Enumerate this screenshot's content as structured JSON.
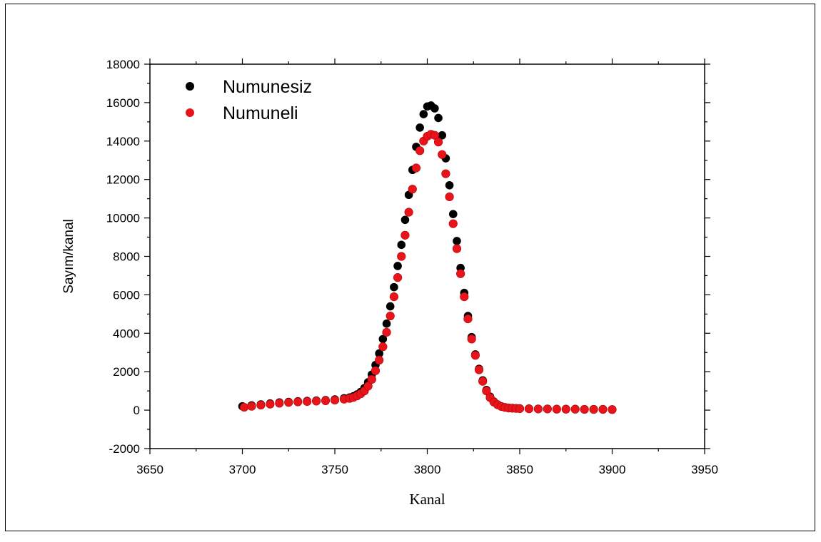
{
  "chart_data": {
    "type": "scatter",
    "xlabel": "Kanal",
    "ylabel": "Sayım/kanal",
    "xlim": [
      3650,
      3950
    ],
    "ylim": [
      -2000,
      18000
    ],
    "xticks": [
      "3650",
      "3700",
      "3750",
      "3800",
      "3850",
      "3900",
      "3950"
    ],
    "yticks": [
      "-2000",
      "0",
      "2000",
      "4000",
      "6000",
      "8000",
      "10000",
      "12000",
      "14000",
      "16000",
      "18000"
    ],
    "legend_position": "top-left",
    "series": [
      {
        "name": "Numunesiz",
        "color": "#000000",
        "x": [
          3700,
          3705,
          3710,
          3715,
          3720,
          3725,
          3730,
          3735,
          3740,
          3745,
          3750,
          3755,
          3758,
          3760,
          3762,
          3764,
          3766,
          3768,
          3770,
          3772,
          3774,
          3776,
          3778,
          3780,
          3782,
          3784,
          3786,
          3788,
          3790,
          3792,
          3794,
          3796,
          3798,
          3800,
          3802,
          3804,
          3806,
          3808,
          3810,
          3812,
          3814,
          3816,
          3818,
          3820,
          3822,
          3824,
          3826,
          3828,
          3830,
          3832,
          3834,
          3836,
          3838,
          3840,
          3842,
          3844,
          3846,
          3848,
          3850,
          3855,
          3860,
          3865,
          3870,
          3875,
          3880,
          3885,
          3890,
          3895,
          3900
        ],
        "y": [
          200,
          250,
          300,
          350,
          400,
          430,
          460,
          480,
          500,
          520,
          560,
          620,
          660,
          720,
          820,
          950,
          1150,
          1450,
          1850,
          2350,
          2950,
          3700,
          4500,
          5400,
          6400,
          7500,
          8600,
          9900,
          11200,
          12500,
          13700,
          14700,
          15400,
          15800,
          15850,
          15700,
          15200,
          14300,
          13100,
          11700,
          10200,
          8800,
          7400,
          6100,
          4900,
          3800,
          2900,
          2150,
          1550,
          1050,
          700,
          450,
          300,
          200,
          150,
          120,
          110,
          100,
          90,
          80,
          70,
          70,
          60,
          60,
          60,
          50,
          50,
          50,
          40
        ]
      },
      {
        "name": "Numuneli",
        "color": "#e8141b",
        "x": [
          3701,
          3705,
          3710,
          3715,
          3720,
          3725,
          3730,
          3735,
          3740,
          3745,
          3750,
          3755,
          3758,
          3760,
          3762,
          3764,
          3766,
          3768,
          3770,
          3772,
          3774,
          3776,
          3778,
          3780,
          3782,
          3784,
          3786,
          3788,
          3790,
          3792,
          3794,
          3796,
          3798,
          3800,
          3802,
          3804,
          3806,
          3808,
          3810,
          3812,
          3814,
          3816,
          3818,
          3820,
          3822,
          3824,
          3826,
          3828,
          3830,
          3832,
          3834,
          3836,
          3838,
          3840,
          3842,
          3844,
          3846,
          3848,
          3850,
          3855,
          3860,
          3865,
          3870,
          3875,
          3880,
          3885,
          3890,
          3895,
          3900
        ],
        "y": [
          150,
          200,
          260,
          310,
          360,
          400,
          430,
          450,
          470,
          490,
          520,
          570,
          610,
          660,
          740,
          850,
          1000,
          1250,
          1600,
          2050,
          2600,
          3300,
          4050,
          4900,
          5900,
          6900,
          8000,
          9100,
          10300,
          11500,
          12600,
          13500,
          14000,
          14250,
          14350,
          14300,
          13950,
          13300,
          12300,
          11100,
          9700,
          8400,
          7100,
          5900,
          4750,
          3700,
          2850,
          2100,
          1500,
          1000,
          650,
          420,
          280,
          190,
          140,
          110,
          100,
          90,
          80,
          70,
          60,
          60,
          50,
          50,
          50,
          40,
          40,
          40,
          30
        ]
      }
    ]
  }
}
